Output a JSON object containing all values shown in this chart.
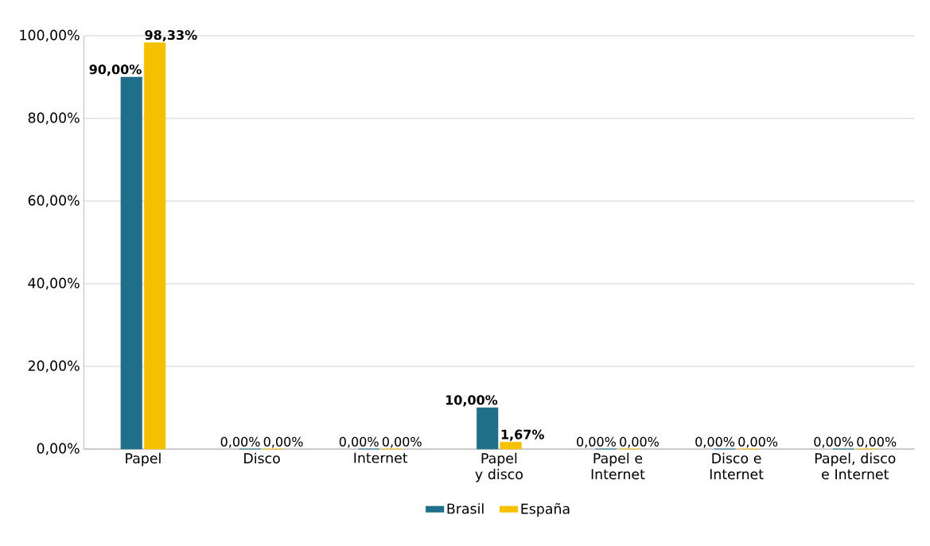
{
  "chart_data": {
    "type": "bar",
    "categories": [
      "Papel",
      "Disco",
      "Internet",
      "Papel y disco",
      "Papel e Internet",
      "Disco e Internet",
      "Papel, disco e Internet"
    ],
    "series": [
      {
        "name": "Brasil",
        "color": "#1f6f8b",
        "values": [
          90,
          0,
          0,
          10,
          0,
          0,
          0
        ],
        "value_labels": [
          "90,00%",
          "0,00%",
          "0,00%",
          "10,00%",
          "0,00%",
          "0,00%",
          "0,00%"
        ]
      },
      {
        "name": "España",
        "color": "#f5c000",
        "values": [
          98.33,
          0,
          0,
          1.67,
          0,
          0,
          0
        ],
        "value_labels": [
          "98,33%",
          "0,00%",
          "0,00%",
          "1,67%",
          "0,00%",
          "0,00%",
          "0,00%"
        ]
      }
    ],
    "ylim": [
      0,
      100
    ],
    "yticks": [
      {
        "value": 0,
        "label": "0,00%"
      },
      {
        "value": 20,
        "label": "20,00%"
      },
      {
        "value": 40,
        "label": "40,00%"
      },
      {
        "value": 60,
        "label": "60,00%"
      },
      {
        "value": 80,
        "label": "80,00%"
      },
      {
        "value": 100,
        "label": "100,00%"
      }
    ],
    "grid": "y",
    "legend": "bottom"
  }
}
